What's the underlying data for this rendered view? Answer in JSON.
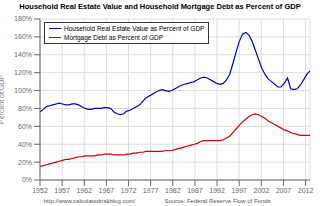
{
  "chart_data": {
    "type": "line",
    "title": "Household Real Estate Value and Household Mortgage Debt as Percent of GDP",
    "ylabel": "Percent of GDP",
    "annotations": [
      "http://www.calculatedriskblog.com/",
      "Source: Federal Reserve Flow of Funds"
    ],
    "x": [
      1952,
      1952.7262,
      1953.4524,
      1954.1786,
      1954.9048,
      1955.631,
      1956.3571,
      1957.0833,
      1957.8095,
      1958.5357,
      1959.2619,
      1959.9881,
      1960.7143,
      1961.4405,
      1962.1667,
      1962.8929,
      1963.619,
      1964.3452,
      1965.0714,
      1965.7976,
      1966.5238,
      1967.25,
      1967.9762,
      1968.7024,
      1969.4286,
      1970.1548,
      1970.881,
      1971.6071,
      1972.3333,
      1973.0595,
      1973.7857,
      1974.5119,
      1975.2381,
      1975.9643,
      1976.6905,
      1977.4167,
      1978.1429,
      1978.869,
      1979.5952,
      1980.3214,
      1981.0476,
      1981.7738,
      1982.5,
      1983.2262,
      1983.9524,
      1984.6786,
      1985.4048,
      1986.131,
      1986.8571,
      1987.5833,
      1988.3095,
      1989.0357,
      1989.7619,
      1990.4881,
      1991.2143,
      1991.9405,
      1992.6667,
      1993.3929,
      1994.119,
      1994.8452,
      1995.5714,
      1996.2976,
      1997.0238,
      1997.75,
      1998.4762,
      1999.2024,
      1999.9286,
      2000.6548,
      2001.381,
      2002.1071,
      2002.8333,
      2003.5595,
      2004.2857,
      2005.0119,
      2005.7381,
      2006.4643,
      2007.1905,
      2007.9167,
      2008.6429,
      2009.369,
      2010.0952,
      2010.8214,
      2011.5476,
      2012.2738,
      2013
    ],
    "xlim": [
      1952,
      2013
    ],
    "xticks": [
      1952,
      1957,
      1962,
      1967,
      1972,
      1977,
      1982,
      1987,
      1992,
      1997,
      2002,
      2007,
      2012
    ],
    "ylim": [
      0.0,
      1.8
    ],
    "yticks": [
      {
        "value": 0.0,
        "label": "0%"
      },
      {
        "value": 0.2,
        "label": "20%"
      },
      {
        "value": 0.4,
        "label": "40%"
      },
      {
        "value": 0.6,
        "label": "60%"
      },
      {
        "value": 0.8,
        "label": "80%"
      },
      {
        "value": 1.0,
        "label": "100%"
      },
      {
        "value": 1.2,
        "label": "120%"
      },
      {
        "value": 1.4,
        "label": "140%"
      },
      {
        "value": 1.6,
        "label": "160%"
      },
      {
        "value": 1.8,
        "label": "180%"
      }
    ],
    "grid": true,
    "legend": "upper left",
    "series": [
      {
        "name": "Household Real Estate Value as Percent of GDP",
        "color": "#0000cc",
        "values": [
          0.76,
          0.79,
          0.82,
          0.83,
          0.84,
          0.85,
          0.86,
          0.85,
          0.84,
          0.84,
          0.85,
          0.85,
          0.84,
          0.82,
          0.8,
          0.79,
          0.79,
          0.8,
          0.8,
          0.8,
          0.81,
          0.81,
          0.8,
          0.76,
          0.74,
          0.73,
          0.74,
          0.77,
          0.78,
          0.8,
          0.82,
          0.84,
          0.88,
          0.92,
          0.94,
          0.96,
          0.98,
          1.0,
          1.01,
          1.0,
          0.99,
          1.0,
          1.02,
          1.04,
          1.06,
          1.07,
          1.08,
          1.09,
          1.1,
          1.12,
          1.14,
          1.15,
          1.14,
          1.12,
          1.1,
          1.08,
          1.07,
          1.08,
          1.12,
          1.18,
          1.3,
          1.43,
          1.55,
          1.63,
          1.65,
          1.62,
          1.55,
          1.45,
          1.35,
          1.25,
          1.18,
          1.13,
          1.1,
          1.07,
          1.04,
          1.04,
          1.08,
          1.14,
          1.02,
          1.01,
          1.02,
          1.06,
          1.12,
          1.18,
          1.22
        ]
      },
      {
        "name": "Mortgage Debt as Percent of GDP",
        "color": "#cc0000",
        "values": [
          0.15,
          0.16,
          0.17,
          0.18,
          0.19,
          0.2,
          0.21,
          0.22,
          0.23,
          0.23,
          0.24,
          0.25,
          0.26,
          0.26,
          0.27,
          0.27,
          0.27,
          0.27,
          0.28,
          0.28,
          0.29,
          0.29,
          0.29,
          0.28,
          0.28,
          0.28,
          0.28,
          0.29,
          0.29,
          0.3,
          0.3,
          0.31,
          0.31,
          0.32,
          0.32,
          0.32,
          0.32,
          0.32,
          0.32,
          0.33,
          0.33,
          0.33,
          0.34,
          0.35,
          0.36,
          0.37,
          0.38,
          0.39,
          0.4,
          0.41,
          0.43,
          0.44,
          0.44,
          0.44,
          0.44,
          0.44,
          0.44,
          0.45,
          0.47,
          0.49,
          0.53,
          0.57,
          0.61,
          0.65,
          0.68,
          0.71,
          0.73,
          0.74,
          0.73,
          0.71,
          0.69,
          0.66,
          0.64,
          0.62,
          0.6,
          0.58,
          0.56,
          0.55,
          0.53,
          0.52,
          0.51,
          0.5,
          0.5,
          0.5,
          0.5
        ]
      }
    ]
  }
}
